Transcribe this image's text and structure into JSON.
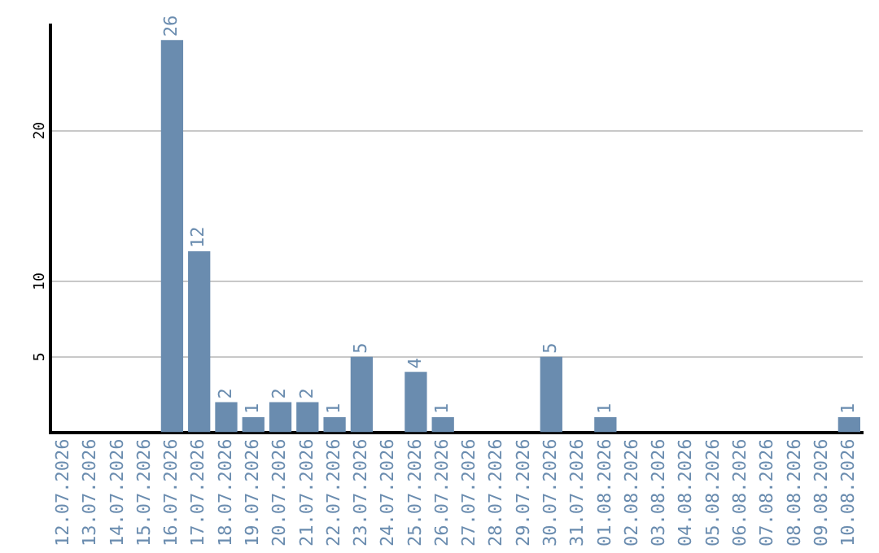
{
  "chart_data": {
    "type": "bar",
    "categories": [
      "12.07.2026",
      "13.07.2026",
      "14.07.2026",
      "15.07.2026",
      "16.07.2026",
      "17.07.2026",
      "18.07.2026",
      "19.07.2026",
      "20.07.2026",
      "21.07.2026",
      "22.07.2026",
      "23.07.2026",
      "24.07.2026",
      "25.07.2026",
      "26.07.2026",
      "27.07.2026",
      "28.07.2026",
      "29.07.2026",
      "30.07.2026",
      "31.07.2026",
      "01.08.2026",
      "02.08.2026",
      "03.08.2026",
      "04.08.2026",
      "05.08.2026",
      "06.08.2026",
      "07.08.2026",
      "08.08.2026",
      "09.08.2026",
      "10.08.2026"
    ],
    "values": [
      null,
      null,
      null,
      null,
      26,
      12,
      2,
      1,
      2,
      2,
      1,
      5,
      null,
      4,
      1,
      null,
      null,
      null,
      5,
      null,
      1,
      null,
      null,
      null,
      null,
      null,
      null,
      null,
      null,
      1
    ],
    "color": "#6a8caf",
    "ylim": [
      0,
      27
    ],
    "yticks": [
      5,
      10,
      20
    ],
    "grid": "y",
    "data_labels": true,
    "legend": false
  }
}
